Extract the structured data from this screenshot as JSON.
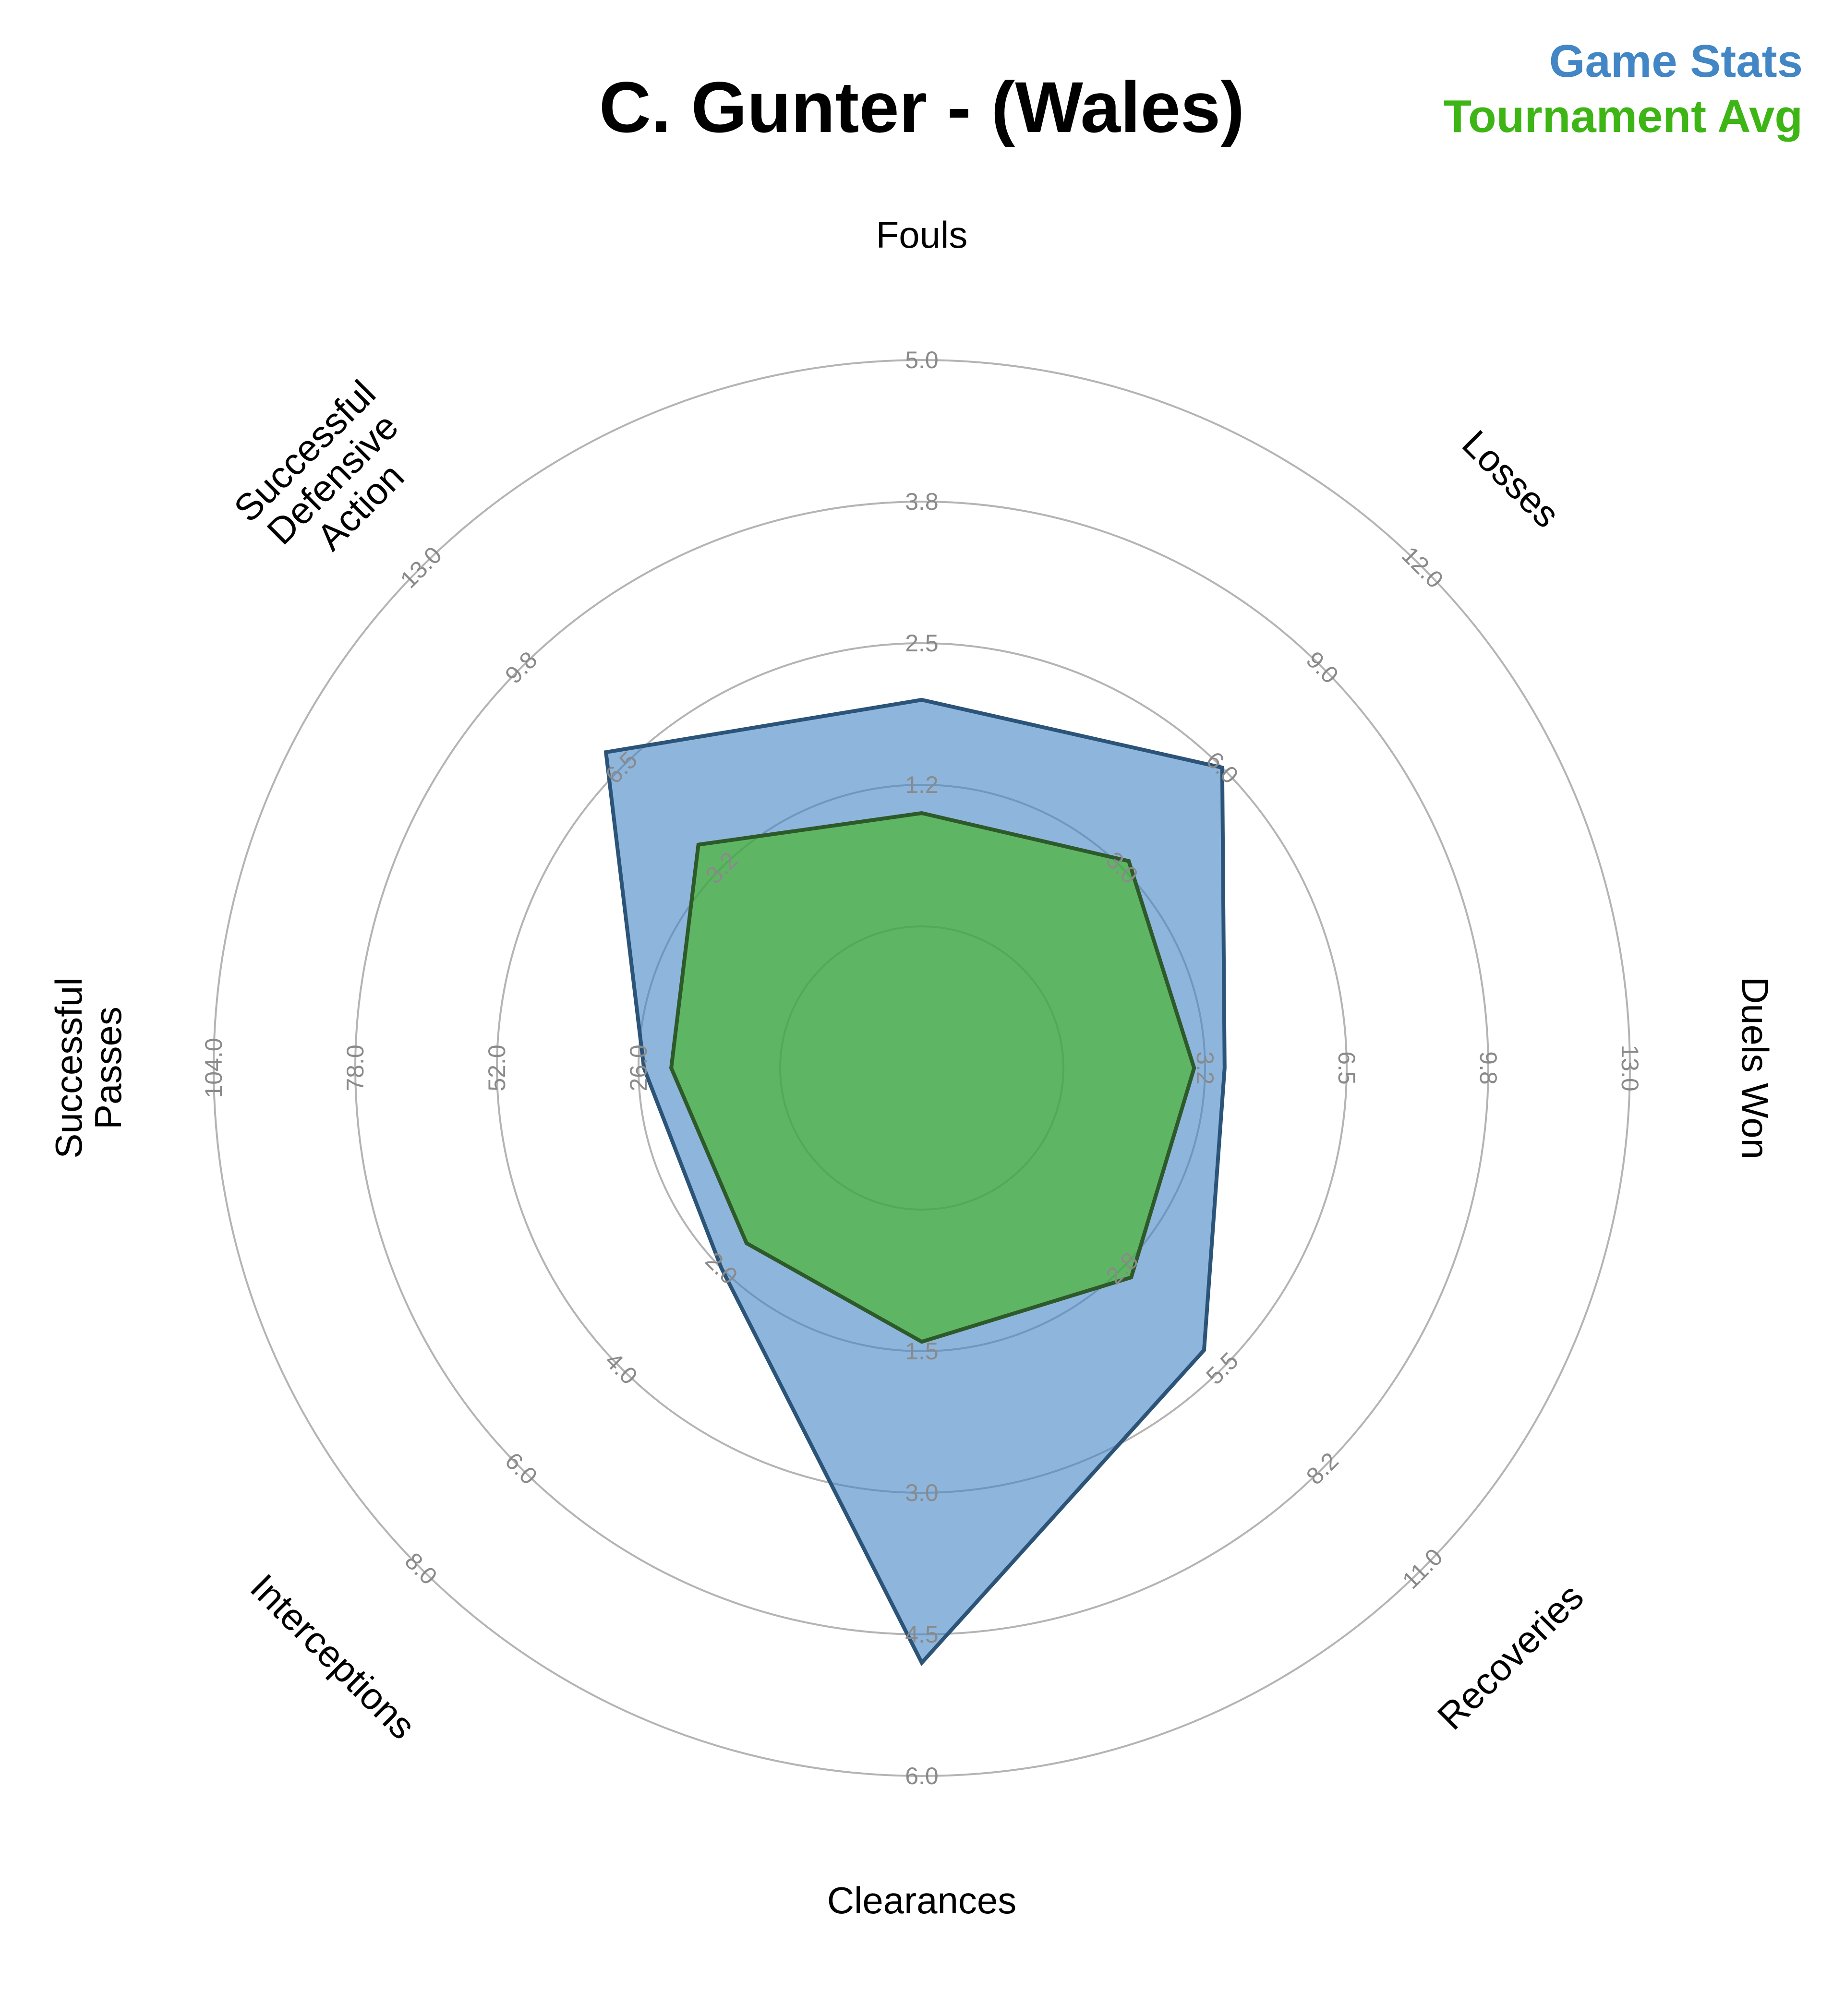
{
  "chart_data": {
    "type": "radar",
    "title": "C. Gunter - (Wales)",
    "axes": [
      {
        "name": "Fouls",
        "ticks": [
          "1.2",
          "2.5",
          "3.8",
          "5.0"
        ],
        "max": 5.0
      },
      {
        "name": "Losses",
        "ticks": [
          "3.0",
          "6.0",
          "9.0",
          "12.0"
        ],
        "max": 12.0
      },
      {
        "name": "Duels Won",
        "ticks": [
          "3.2",
          "6.5",
          "9.8",
          "13.0"
        ],
        "max": 13.0
      },
      {
        "name": "Recoveries",
        "ticks": [
          "2.8",
          "5.5",
          "8.2",
          "11.0"
        ],
        "max": 11.0
      },
      {
        "name": "Clearances",
        "ticks": [
          "1.5",
          "3.0",
          "4.5",
          "6.0"
        ],
        "max": 6.0
      },
      {
        "name": "Interceptions",
        "ticks": [
          "2.0",
          "4.0",
          "6.0",
          "8.0"
        ],
        "max": 8.0
      },
      {
        "name": "Successful Passes",
        "ticks": [
          "26.0",
          "52.0",
          "78.0",
          "104.0"
        ],
        "max": 104.0
      },
      {
        "name": "Successful Defensive Action",
        "ticks": [
          "3.2",
          "6.5",
          "9.8",
          "13.0"
        ],
        "max": 13.0
      }
    ],
    "series": [
      {
        "name": "Game Stats",
        "color": "#4286c6",
        "values": [
          2.0,
          6.0,
          3.7,
          5.0,
          4.8,
          2.0,
          25.0,
          7.0
        ]
      },
      {
        "name": "Tournament Avg",
        "color": "#3db515",
        "values": [
          1.0,
          3.2,
          3.0,
          3.0,
          1.4,
          1.5,
          20.0,
          4.0
        ]
      }
    ],
    "grid": true,
    "legend_position": "top-right"
  }
}
